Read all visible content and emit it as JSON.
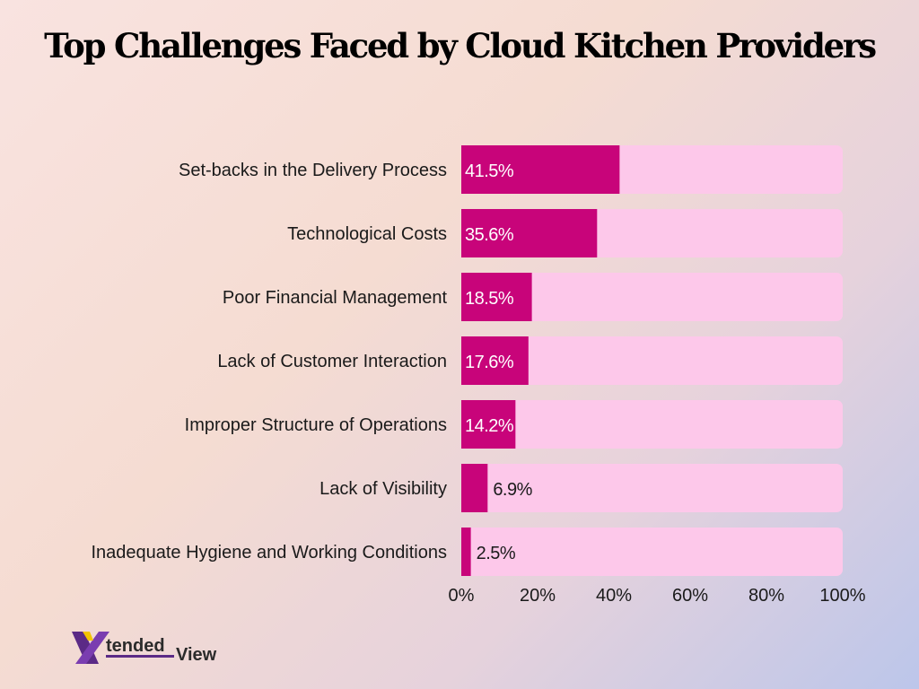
{
  "chart_data": {
    "type": "bar",
    "orientation": "horizontal",
    "title": "Top Challenges Faced by Cloud Kitchen Providers",
    "xlabel": "",
    "ylabel": "",
    "xlim": [
      0,
      100
    ],
    "x_ticks": [
      "0%",
      "20%",
      "40%",
      "60%",
      "80%",
      "100%"
    ],
    "categories": [
      "Set-backs in the Delivery Process",
      "Technological Costs",
      "Poor Financial Management",
      "Lack of Customer Interaction",
      "Improper Structure of Operations",
      "Lack of Visibility",
      "Inadequate Hygiene and Working Conditions"
    ],
    "values": [
      41.5,
      35.6,
      18.5,
      17.6,
      14.2,
      6.9,
      2.5
    ],
    "value_labels": [
      "41.5%",
      "35.6%",
      "18.5%",
      "17.6%",
      "14.2%",
      "6.9%",
      "2.5%"
    ],
    "grid": false,
    "legend": "none",
    "colors": {
      "bar": "#c8047a",
      "track": "#fdc8ea"
    }
  },
  "logo": {
    "brand_big": "X",
    "brand_mid": "tended",
    "brand_end": "View"
  },
  "colors": {
    "logo_purple": "#5b2a86",
    "logo_yellow": "#f2c300",
    "logo_text": "#2b2b2b"
  }
}
